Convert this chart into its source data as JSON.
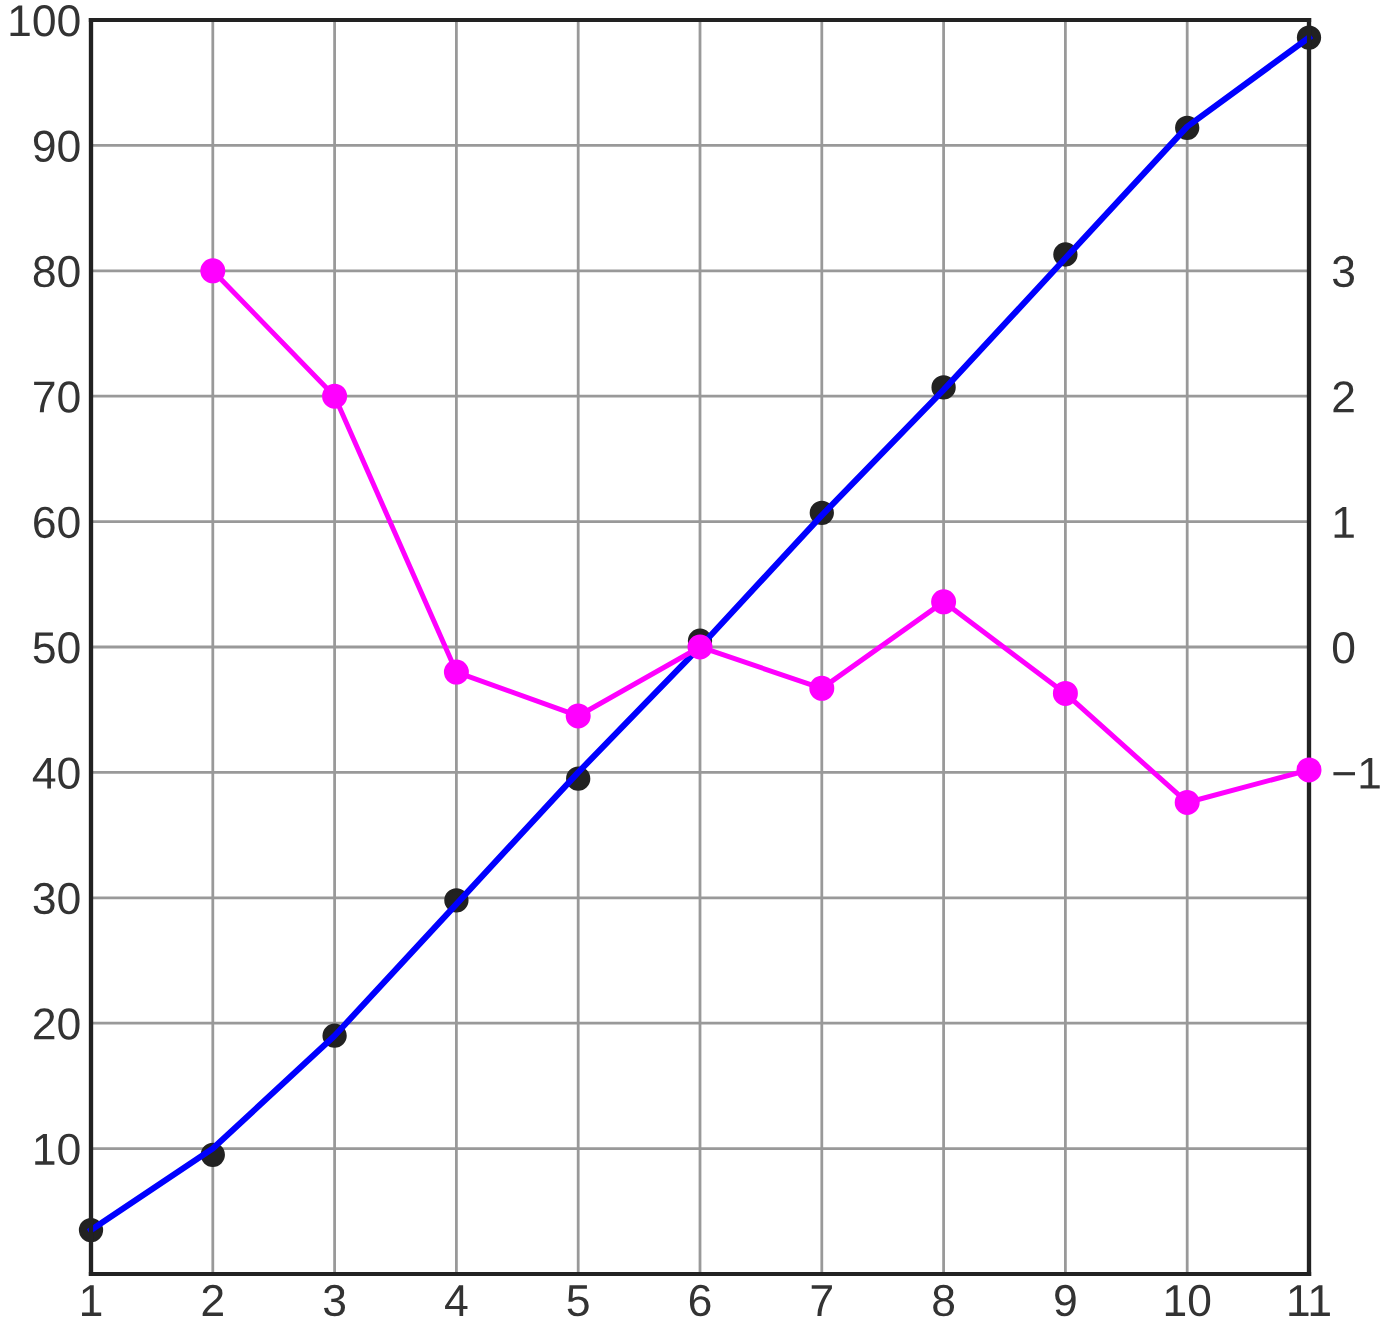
{
  "chart_data": {
    "type": "line",
    "x": [
      1,
      2,
      3,
      4,
      5,
      6,
      7,
      8,
      9,
      10,
      11
    ],
    "series": [
      {
        "color": "#0000ff",
        "marker": "none",
        "values": [
          3.5,
          10,
          19,
          29.5,
          40,
          50,
          60.5,
          70.5,
          81,
          91.5,
          98.6
        ]
      },
      {
        "type": "scatter",
        "color": "#222222",
        "marker": "circle",
        "values": [
          3.5,
          9.5,
          19,
          29.8,
          39.5,
          50.5,
          60.7,
          70.7,
          81.3,
          91.4,
          98.6
        ]
      },
      {
        "axis": "y2",
        "color": "#ff00ff",
        "marker": "circle",
        "values": [
          null,
          3.0,
          2.0,
          -0.2,
          -0.55,
          0,
          -0.33,
          0.36,
          -0.37,
          -1.24,
          -0.98
        ]
      }
    ],
    "xlim": [
      1,
      11
    ],
    "xticks": [
      1,
      2,
      3,
      4,
      5,
      6,
      7,
      8,
      9,
      10,
      11
    ],
    "ylim": [
      0,
      100
    ],
    "yticks": [
      10,
      20,
      30,
      40,
      50,
      60,
      70,
      80,
      90,
      100
    ],
    "y2lim": [
      -5,
      5
    ],
    "y2ticks": [
      {
        "value": -1,
        "label": "−1"
      },
      0,
      1,
      2,
      3
    ],
    "grid": true
  }
}
